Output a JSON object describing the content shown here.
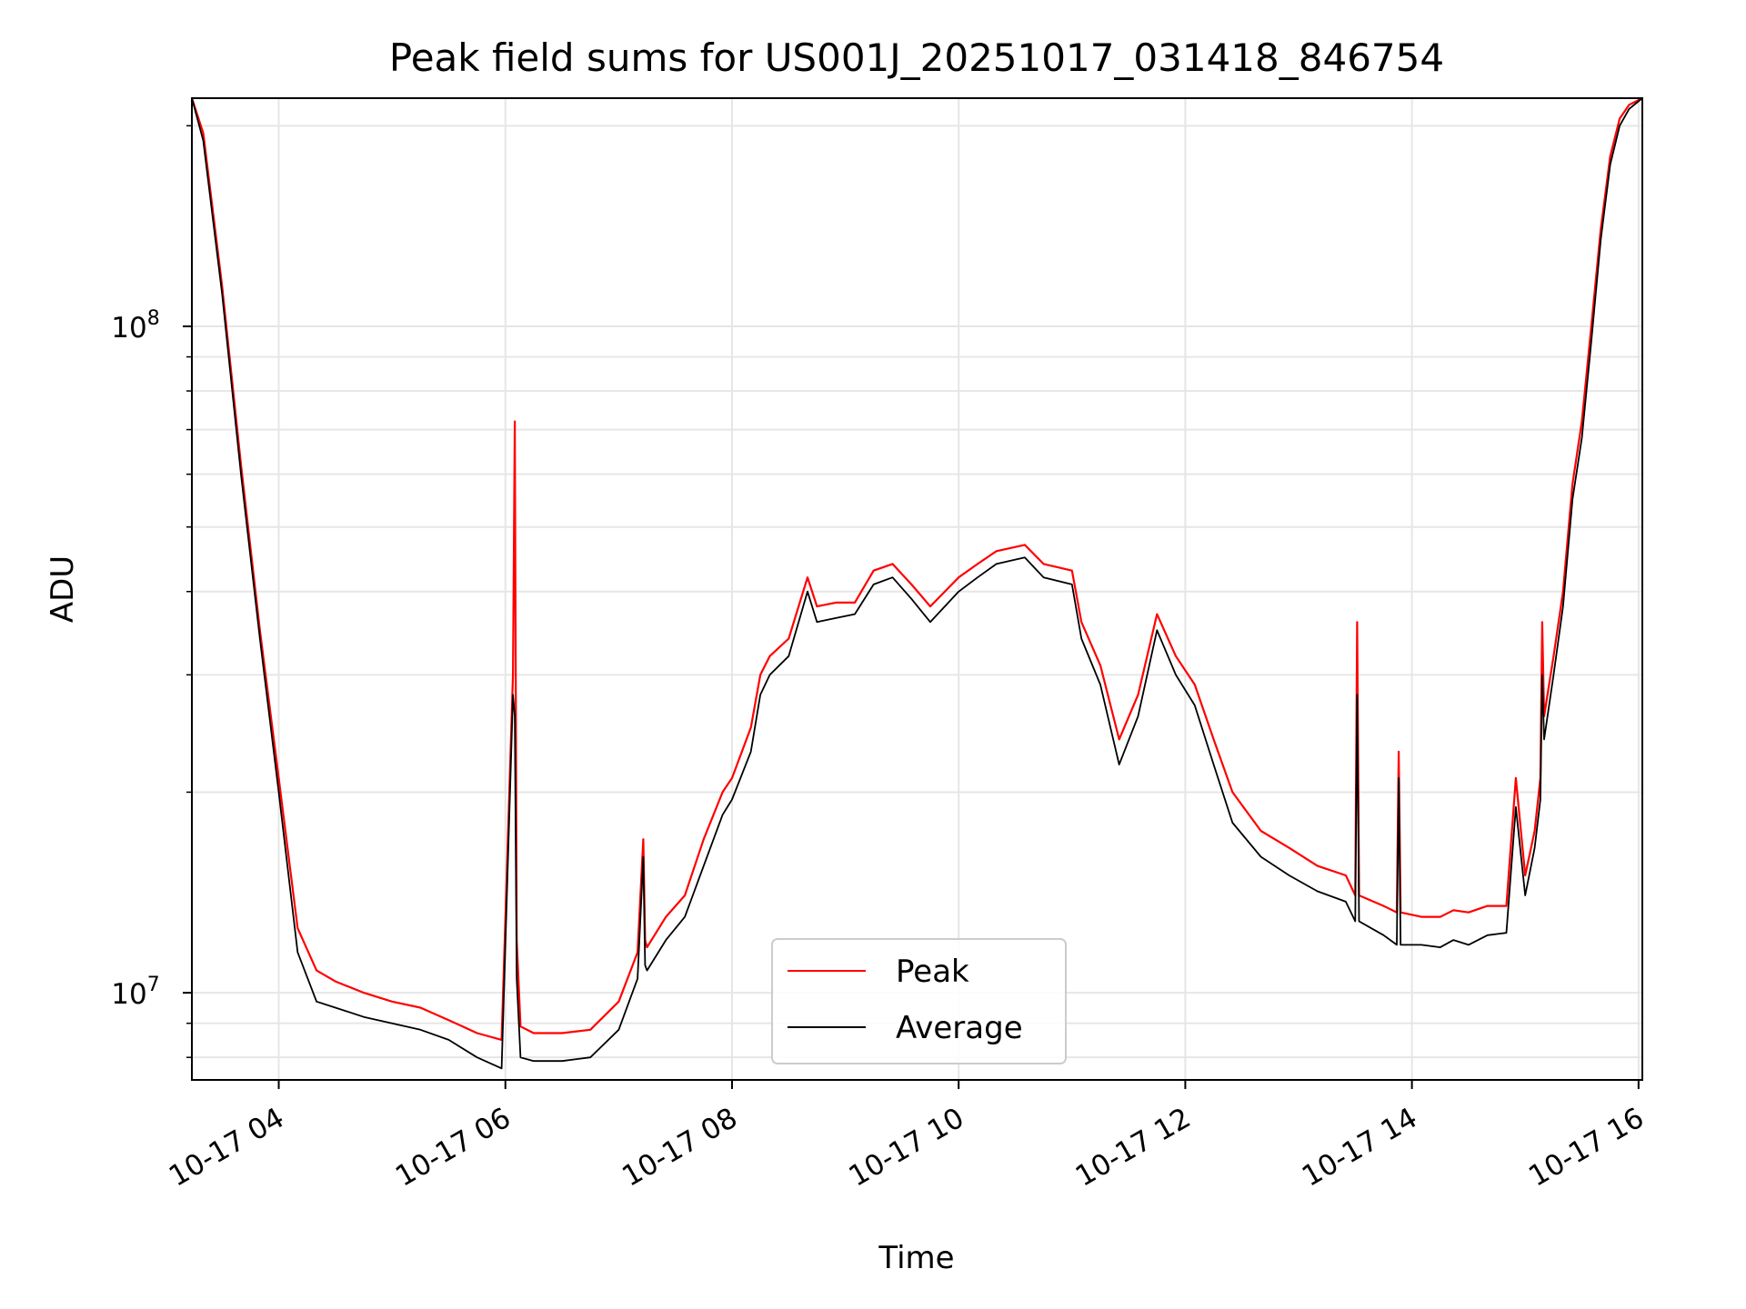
{
  "chart_data": {
    "type": "line",
    "title": "Peak field sums for US001J_20251017_031418_846754",
    "xlabel": "Time",
    "ylabel": "ADU",
    "x_scale": "time",
    "y_scale": "log",
    "xlim": [
      "2025-10-17 03:14",
      "2025-10-17 16:02"
    ],
    "ylim": [
      7400000,
      220000000
    ],
    "xticks": [
      {
        "value": "2025-10-17 04:00",
        "label": "10-17 04"
      },
      {
        "value": "2025-10-17 06:00",
        "label": "10-17 06"
      },
      {
        "value": "2025-10-17 08:00",
        "label": "10-17 08"
      },
      {
        "value": "2025-10-17 10:00",
        "label": "10-17 10"
      },
      {
        "value": "2025-10-17 12:00",
        "label": "10-17 12"
      },
      {
        "value": "2025-10-17 14:00",
        "label": "10-17 14"
      },
      {
        "value": "2025-10-17 16:00",
        "label": "10-17 16"
      }
    ],
    "yticks": [
      {
        "value": 10000000,
        "base": "10",
        "exp": "7"
      },
      {
        "value": 100000000,
        "base": "10",
        "exp": "8"
      }
    ],
    "grid": true,
    "legend": "lower-center",
    "series": [
      {
        "name": "Peak",
        "color": "#ff0000",
        "x": [
          "2025-10-17 03:14",
          "2025-10-17 03:20",
          "2025-10-17 03:30",
          "2025-10-17 03:40",
          "2025-10-17 03:50",
          "2025-10-17 04:00",
          "2025-10-17 04:10",
          "2025-10-17 04:20",
          "2025-10-17 04:30",
          "2025-10-17 04:45",
          "2025-10-17 05:00",
          "2025-10-17 05:15",
          "2025-10-17 05:30",
          "2025-10-17 05:45",
          "2025-10-17 05:58",
          "2025-10-17 06:04",
          "2025-10-17 06:05",
          "2025-10-17 06:06",
          "2025-10-17 06:08",
          "2025-10-17 06:15",
          "2025-10-17 06:30",
          "2025-10-17 06:45",
          "2025-10-17 07:00",
          "2025-10-17 07:10",
          "2025-10-17 07:13",
          "2025-10-17 07:14",
          "2025-10-17 07:15",
          "2025-10-17 07:25",
          "2025-10-17 07:35",
          "2025-10-17 07:45",
          "2025-10-17 07:55",
          "2025-10-17 08:00",
          "2025-10-17 08:10",
          "2025-10-17 08:15",
          "2025-10-17 08:20",
          "2025-10-17 08:30",
          "2025-10-17 08:40",
          "2025-10-17 08:45",
          "2025-10-17 08:55",
          "2025-10-17 09:05",
          "2025-10-17 09:15",
          "2025-10-17 09:25",
          "2025-10-17 09:35",
          "2025-10-17 09:45",
          "2025-10-17 10:00",
          "2025-10-17 10:10",
          "2025-10-17 10:20",
          "2025-10-17 10:35",
          "2025-10-17 10:45",
          "2025-10-17 11:00",
          "2025-10-17 11:05",
          "2025-10-17 11:15",
          "2025-10-17 11:25",
          "2025-10-17 11:35",
          "2025-10-17 11:45",
          "2025-10-17 11:55",
          "2025-10-17 12:05",
          "2025-10-17 12:15",
          "2025-10-17 12:25",
          "2025-10-17 12:40",
          "2025-10-17 12:55",
          "2025-10-17 13:10",
          "2025-10-17 13:25",
          "2025-10-17 13:30",
          "2025-10-17 13:31",
          "2025-10-17 13:32",
          "2025-10-17 13:45",
          "2025-10-17 13:52",
          "2025-10-17 13:53",
          "2025-10-17 13:54",
          "2025-10-17 14:05",
          "2025-10-17 14:15",
          "2025-10-17 14:22",
          "2025-10-17 14:30",
          "2025-10-17 14:40",
          "2025-10-17 14:50",
          "2025-10-17 14:55",
          "2025-10-17 15:00",
          "2025-10-17 15:05",
          "2025-10-17 15:08",
          "2025-10-17 15:09",
          "2025-10-17 15:10",
          "2025-10-17 15:15",
          "2025-10-17 15:20",
          "2025-10-17 15:25",
          "2025-10-17 15:30",
          "2025-10-17 15:35",
          "2025-10-17 15:40",
          "2025-10-17 15:45",
          "2025-10-17 15:50",
          "2025-10-17 15:55",
          "2025-10-17 16:02"
        ],
        "values": [
          220000000,
          195000000,
          115000000,
          62000000,
          35000000,
          21000000,
          12500000,
          10800000,
          10400000,
          10000000,
          9700000,
          9500000,
          9100000,
          8700000,
          8500000,
          30000000,
          72000000,
          12000000,
          8900000,
          8700000,
          8700000,
          8800000,
          9700000,
          11500000,
          17000000,
          12000000,
          11700000,
          13000000,
          14000000,
          17000000,
          20000000,
          21000000,
          25000000,
          30000000,
          32000000,
          34000000,
          42000000,
          38000000,
          38500000,
          38500000,
          43000000,
          44000000,
          41000000,
          38000000,
          42000000,
          44000000,
          46000000,
          47000000,
          44000000,
          43000000,
          36000000,
          31000000,
          24000000,
          28000000,
          37000000,
          32000000,
          29000000,
          24000000,
          20000000,
          17500000,
          16500000,
          15500000,
          15000000,
          14000000,
          36000000,
          14000000,
          13500000,
          13200000,
          23000000,
          13200000,
          13000000,
          13000000,
          13300000,
          13200000,
          13500000,
          13500000,
          21000000,
          15000000,
          17500000,
          21000000,
          36000000,
          26000000,
          32000000,
          40000000,
          58000000,
          72000000,
          100000000,
          140000000,
          180000000,
          205000000,
          215000000,
          220000000
        ]
      },
      {
        "name": "Average",
        "color": "#000000",
        "x": [
          "2025-10-17 03:14",
          "2025-10-17 03:20",
          "2025-10-17 03:30",
          "2025-10-17 03:40",
          "2025-10-17 03:50",
          "2025-10-17 04:00",
          "2025-10-17 04:10",
          "2025-10-17 04:20",
          "2025-10-17 04:30",
          "2025-10-17 04:45",
          "2025-10-17 05:00",
          "2025-10-17 05:15",
          "2025-10-17 05:30",
          "2025-10-17 05:45",
          "2025-10-17 05:58",
          "2025-10-17 06:04",
          "2025-10-17 06:05",
          "2025-10-17 06:06",
          "2025-10-17 06:08",
          "2025-10-17 06:15",
          "2025-10-17 06:30",
          "2025-10-17 06:45",
          "2025-10-17 07:00",
          "2025-10-17 07:10",
          "2025-10-17 07:13",
          "2025-10-17 07:14",
          "2025-10-17 07:15",
          "2025-10-17 07:25",
          "2025-10-17 07:35",
          "2025-10-17 07:45",
          "2025-10-17 07:55",
          "2025-10-17 08:00",
          "2025-10-17 08:10",
          "2025-10-17 08:15",
          "2025-10-17 08:20",
          "2025-10-17 08:30",
          "2025-10-17 08:40",
          "2025-10-17 08:45",
          "2025-10-17 08:55",
          "2025-10-17 09:05",
          "2025-10-17 09:15",
          "2025-10-17 09:25",
          "2025-10-17 09:35",
          "2025-10-17 09:45",
          "2025-10-17 10:00",
          "2025-10-17 10:10",
          "2025-10-17 10:20",
          "2025-10-17 10:35",
          "2025-10-17 10:45",
          "2025-10-17 11:00",
          "2025-10-17 11:05",
          "2025-10-17 11:15",
          "2025-10-17 11:25",
          "2025-10-17 11:35",
          "2025-10-17 11:45",
          "2025-10-17 11:55",
          "2025-10-17 12:05",
          "2025-10-17 12:15",
          "2025-10-17 12:25",
          "2025-10-17 12:40",
          "2025-10-17 12:55",
          "2025-10-17 13:10",
          "2025-10-17 13:25",
          "2025-10-17 13:30",
          "2025-10-17 13:31",
          "2025-10-17 13:32",
          "2025-10-17 13:45",
          "2025-10-17 13:52",
          "2025-10-17 13:53",
          "2025-10-17 13:54",
          "2025-10-17 14:05",
          "2025-10-17 14:15",
          "2025-10-17 14:22",
          "2025-10-17 14:30",
          "2025-10-17 14:40",
          "2025-10-17 14:50",
          "2025-10-17 14:55",
          "2025-10-17 15:00",
          "2025-10-17 15:05",
          "2025-10-17 15:08",
          "2025-10-17 15:09",
          "2025-10-17 15:10",
          "2025-10-17 15:15",
          "2025-10-17 15:20",
          "2025-10-17 15:25",
          "2025-10-17 15:30",
          "2025-10-17 15:35",
          "2025-10-17 15:40",
          "2025-10-17 15:45",
          "2025-10-17 15:50",
          "2025-10-17 15:55",
          "2025-10-17 16:02"
        ],
        "values": [
          220000000,
          190000000,
          112000000,
          60000000,
          34000000,
          20000000,
          11500000,
          9700000,
          9500000,
          9200000,
          9000000,
          8800000,
          8500000,
          8000000,
          7700000,
          28000000,
          26000000,
          10500000,
          8000000,
          7900000,
          7900000,
          8000000,
          8800000,
          10500000,
          16000000,
          11000000,
          10800000,
          12000000,
          13000000,
          15500000,
          18500000,
          19500000,
          23000000,
          28000000,
          30000000,
          32000000,
          40000000,
          36000000,
          36500000,
          37000000,
          41000000,
          42000000,
          39000000,
          36000000,
          40000000,
          42000000,
          44000000,
          45000000,
          42000000,
          41000000,
          34000000,
          29000000,
          22000000,
          26000000,
          35000000,
          30000000,
          27000000,
          22000000,
          18000000,
          16000000,
          15000000,
          14200000,
          13700000,
          12800000,
          28000000,
          12800000,
          12200000,
          11800000,
          21000000,
          11800000,
          11800000,
          11700000,
          12000000,
          11800000,
          12200000,
          12300000,
          19000000,
          14000000,
          16500000,
          19500000,
          30000000,
          24000000,
          30000000,
          38000000,
          55000000,
          68000000,
          95000000,
          135000000,
          175000000,
          200000000,
          212000000,
          220000000
        ]
      }
    ]
  }
}
